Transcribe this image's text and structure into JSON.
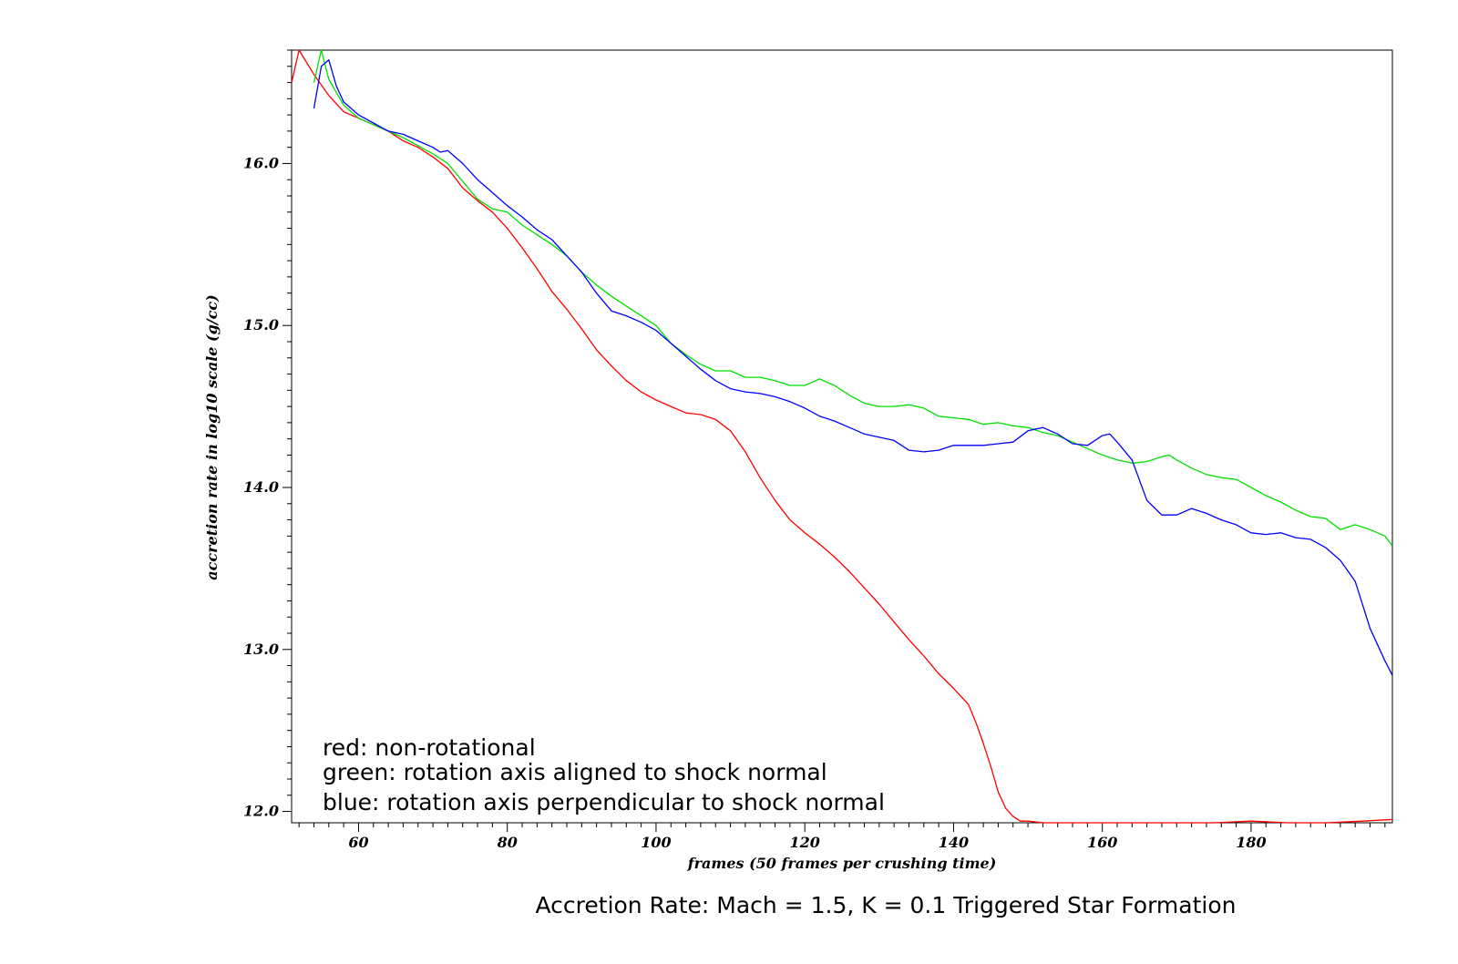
{
  "chart_data": {
    "type": "line",
    "title": "Accretion Rate: Mach = 1.5, K = 0.1 Triggered Star Formation",
    "xlabel": "frames (50 frames per crushing time)",
    "ylabel": "accretion rate in log10 scale (g/cc)",
    "xlim": [
      51,
      199
    ],
    "ylim": [
      11.93,
      16.7
    ],
    "x_ticks": [
      60,
      80,
      100,
      120,
      140,
      160,
      180
    ],
    "x_tick_labels": [
      "60",
      "80",
      "100",
      "120",
      "140",
      "160",
      "180"
    ],
    "y_ticks": [
      12,
      13,
      14,
      15,
      16
    ],
    "y_tick_labels": [
      "12.0",
      "13.0",
      "14.0",
      "15.0",
      "16.0"
    ],
    "legend": [
      "red: non-rotational",
      "green: rotation axis aligned to shock normal",
      "blue: rotation axis perpendicular to shock normal"
    ],
    "legend_position": "bottom-left",
    "grid": false,
    "series": [
      {
        "color": "#ff0000",
        "x": [
          51,
          52,
          54,
          56,
          58,
          60,
          62,
          64,
          66,
          68,
          70,
          72,
          74,
          76,
          78,
          80,
          82,
          84,
          86,
          88,
          90,
          92,
          94,
          96,
          98,
          100,
          102,
          104,
          106,
          108,
          110,
          112,
          114,
          116,
          118,
          120,
          122,
          124,
          126,
          128,
          130,
          132,
          134,
          136,
          138,
          140,
          142,
          143,
          144,
          145,
          146,
          147,
          148,
          149,
          150,
          152,
          154,
          156,
          158,
          160,
          165,
          170,
          175,
          180,
          185,
          190,
          195,
          199
        ],
        "y": [
          16.5,
          16.7,
          16.55,
          16.42,
          16.32,
          16.28,
          16.24,
          16.2,
          16.14,
          16.1,
          16.04,
          15.97,
          15.85,
          15.77,
          15.7,
          15.6,
          15.48,
          15.35,
          15.21,
          15.1,
          14.98,
          14.85,
          14.75,
          14.66,
          14.59,
          14.54,
          14.5,
          14.46,
          14.45,
          14.42,
          14.35,
          14.22,
          14.06,
          13.92,
          13.8,
          13.72,
          13.65,
          13.57,
          13.48,
          13.38,
          13.28,
          13.17,
          13.06,
          12.96,
          12.85,
          12.76,
          12.66,
          12.55,
          12.42,
          12.28,
          12.12,
          12.02,
          11.97,
          11.94,
          11.94,
          11.93,
          11.93,
          11.92,
          11.92,
          11.92,
          11.92,
          11.92,
          11.93,
          11.94,
          11.92,
          11.89,
          11.94,
          11.95
        ]
      },
      {
        "color": "#00e000",
        "x": [
          54,
          55,
          56,
          58,
          60,
          62,
          64,
          66,
          68,
          70,
          72,
          74,
          76,
          78,
          80,
          82,
          84,
          86,
          88,
          90,
          92,
          94,
          96,
          98,
          100,
          102,
          104,
          106,
          108,
          110,
          112,
          114,
          116,
          118,
          120,
          122,
          124,
          126,
          128,
          130,
          132,
          134,
          136,
          138,
          140,
          142,
          144,
          146,
          148,
          150,
          152,
          154,
          156,
          158,
          160,
          162,
          164,
          166,
          168,
          169,
          170,
          172,
          174,
          176,
          178,
          180,
          182,
          184,
          186,
          188,
          190,
          192,
          194,
          196,
          198,
          199
        ],
        "y": [
          16.5,
          16.72,
          16.52,
          16.36,
          16.28,
          16.24,
          16.2,
          16.16,
          16.11,
          16.06,
          16.0,
          15.89,
          15.78,
          15.72,
          15.7,
          15.62,
          15.56,
          15.5,
          15.43,
          15.33,
          15.25,
          15.18,
          15.12,
          15.06,
          15.0,
          14.89,
          14.82,
          14.76,
          14.72,
          14.72,
          14.68,
          14.68,
          14.66,
          14.63,
          14.63,
          14.67,
          14.63,
          14.57,
          14.52,
          14.5,
          14.5,
          14.51,
          14.49,
          14.44,
          14.43,
          14.42,
          14.39,
          14.4,
          14.38,
          14.37,
          14.34,
          14.32,
          14.28,
          14.24,
          14.2,
          14.17,
          14.15,
          14.16,
          14.19,
          14.2,
          14.17,
          14.12,
          14.08,
          14.06,
          14.05,
          14.0,
          13.95,
          13.91,
          13.86,
          13.82,
          13.81,
          13.74,
          13.77,
          13.74,
          13.7,
          13.64
        ]
      },
      {
        "color": "#0000ff",
        "x": [
          54,
          55,
          56,
          57,
          58,
          60,
          62,
          64,
          66,
          68,
          70,
          71,
          72,
          74,
          76,
          78,
          80,
          82,
          84,
          86,
          88,
          90,
          92,
          94,
          96,
          98,
          100,
          102,
          104,
          106,
          108,
          110,
          112,
          114,
          116,
          118,
          120,
          122,
          124,
          126,
          128,
          130,
          132,
          134,
          136,
          138,
          140,
          142,
          144,
          146,
          148,
          150,
          152,
          154,
          156,
          158,
          160,
          161,
          162,
          164,
          166,
          168,
          170,
          172,
          174,
          176,
          178,
          180,
          182,
          184,
          186,
          188,
          190,
          192,
          194,
          196,
          198,
          199
        ],
        "y": [
          16.34,
          16.6,
          16.64,
          16.48,
          16.38,
          16.3,
          16.25,
          16.2,
          16.18,
          16.14,
          16.1,
          16.07,
          16.08,
          16.0,
          15.9,
          15.82,
          15.74,
          15.67,
          15.59,
          15.53,
          15.43,
          15.33,
          15.2,
          15.09,
          15.06,
          15.02,
          14.97,
          14.89,
          14.81,
          14.73,
          14.66,
          14.61,
          14.59,
          14.58,
          14.56,
          14.53,
          14.49,
          14.44,
          14.41,
          14.37,
          14.33,
          14.31,
          14.29,
          14.23,
          14.22,
          14.23,
          14.26,
          14.26,
          14.26,
          14.27,
          14.28,
          14.35,
          14.37,
          14.33,
          14.27,
          14.26,
          14.32,
          14.33,
          14.28,
          14.17,
          13.92,
          13.83,
          13.83,
          13.87,
          13.84,
          13.8,
          13.77,
          13.72,
          13.71,
          13.72,
          13.69,
          13.68,
          13.63,
          13.55,
          13.42,
          13.13,
          12.93,
          12.84
        ]
      }
    ]
  }
}
